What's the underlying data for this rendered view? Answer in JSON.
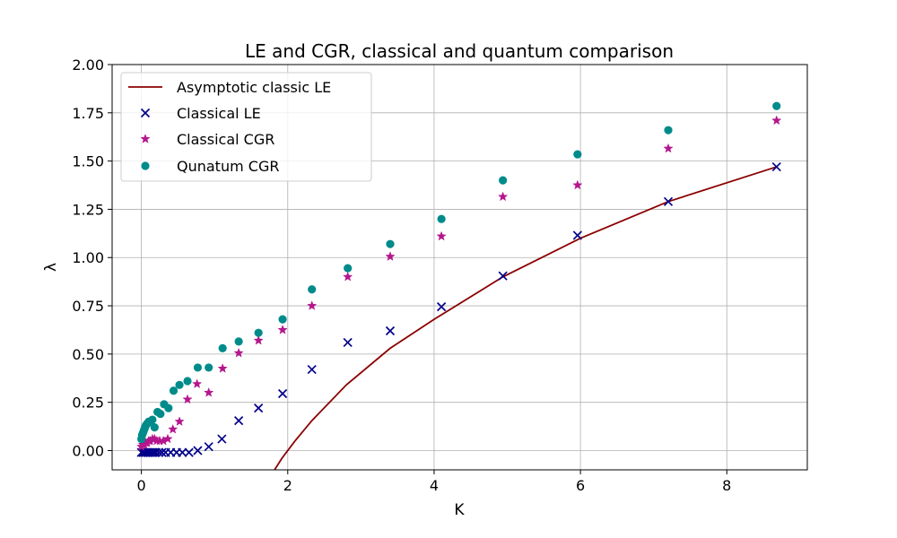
{
  "chart_data": {
    "type": "scatter",
    "title": "LE and CGR, classical and quantum comparison",
    "xlabel": "K",
    "ylabel": "λ",
    "xlim": [
      -0.4,
      9.1
    ],
    "ylim": [
      -0.1,
      2.0
    ],
    "xticks": [
      0,
      2,
      4,
      6,
      8
    ],
    "xtick_labels": [
      "0",
      "2",
      "4",
      "6",
      "8"
    ],
    "yticks": [
      0.0,
      0.25,
      0.5,
      0.75,
      1.0,
      1.25,
      1.5,
      1.75,
      2.0
    ],
    "ytick_labels": [
      "0.00",
      "0.25",
      "0.50",
      "0.75",
      "1.00",
      "1.25",
      "1.50",
      "1.75",
      "2.00"
    ],
    "grid": true,
    "legend_position": "top-left",
    "series": [
      {
        "name": "Asymptotic classic LE",
        "kind": "line",
        "color": "#8b0000",
        "x": [
          1.82,
          1.92,
          2.1,
          2.33,
          2.8,
          3.4,
          4.0,
          4.94,
          6.0,
          7.2,
          8.68
        ],
        "y": [
          -0.1,
          -0.04,
          0.05,
          0.155,
          0.34,
          0.53,
          0.68,
          0.9,
          1.1,
          1.29,
          1.47
        ]
      },
      {
        "name": "Classical LE",
        "kind": "marker",
        "marker": "x",
        "color": "#00008b",
        "x": [
          0.0,
          0.02,
          0.04,
          0.06,
          0.08,
          0.1,
          0.12,
          0.14,
          0.16,
          0.18,
          0.2,
          0.24,
          0.28,
          0.33,
          0.4,
          0.48,
          0.56,
          0.65,
          0.77,
          0.92,
          1.1,
          1.33,
          1.6,
          1.93,
          2.33,
          2.82,
          3.4,
          4.1,
          4.94,
          5.96,
          7.2,
          8.68
        ],
        "y": [
          -0.01,
          -0.01,
          -0.01,
          -0.01,
          -0.01,
          -0.01,
          -0.01,
          -0.01,
          -0.01,
          -0.01,
          -0.01,
          -0.01,
          -0.01,
          -0.01,
          -0.01,
          -0.01,
          -0.01,
          -0.01,
          0.0,
          0.02,
          0.06,
          0.155,
          0.22,
          0.295,
          0.42,
          0.56,
          0.62,
          0.745,
          0.905,
          1.115,
          1.29,
          1.47
        ]
      },
      {
        "name": "Classical CGR",
        "kind": "marker",
        "marker": "star",
        "color": "#b5168d",
        "x": [
          0.0,
          0.02,
          0.04,
          0.06,
          0.08,
          0.1,
          0.12,
          0.15,
          0.18,
          0.21,
          0.25,
          0.3,
          0.36,
          0.43,
          0.52,
          0.63,
          0.76,
          0.92,
          1.11,
          1.33,
          1.6,
          1.93,
          2.33,
          2.82,
          3.4,
          4.1,
          4.94,
          5.96,
          7.2,
          8.68
        ],
        "y": [
          0.02,
          0.03,
          0.03,
          0.04,
          0.04,
          0.05,
          0.05,
          0.06,
          0.06,
          0.05,
          0.05,
          0.05,
          0.06,
          0.11,
          0.15,
          0.265,
          0.345,
          0.3,
          0.425,
          0.505,
          0.57,
          0.625,
          0.75,
          0.9,
          1.005,
          1.11,
          1.315,
          1.375,
          1.565,
          1.71
        ]
      },
      {
        "name": "Qunatum CGR",
        "kind": "marker",
        "marker": "circle",
        "color": "#008b8b",
        "x": [
          0.0,
          0.01,
          0.02,
          0.03,
          0.04,
          0.05,
          0.06,
          0.08,
          0.1,
          0.12,
          0.15,
          0.18,
          0.22,
          0.26,
          0.31,
          0.37,
          0.44,
          0.52,
          0.63,
          0.77,
          0.92,
          1.11,
          1.33,
          1.6,
          1.93,
          2.33,
          2.82,
          3.4,
          4.1,
          4.94,
          5.96,
          7.2,
          8.68
        ],
        "y": [
          0.06,
          0.08,
          0.09,
          0.1,
          0.11,
          0.12,
          0.13,
          0.14,
          0.15,
          0.15,
          0.16,
          0.12,
          0.2,
          0.19,
          0.24,
          0.22,
          0.31,
          0.34,
          0.36,
          0.43,
          0.43,
          0.53,
          0.565,
          0.61,
          0.68,
          0.835,
          0.945,
          1.07,
          1.2,
          1.4,
          1.535,
          1.66,
          1.785
        ]
      }
    ]
  }
}
